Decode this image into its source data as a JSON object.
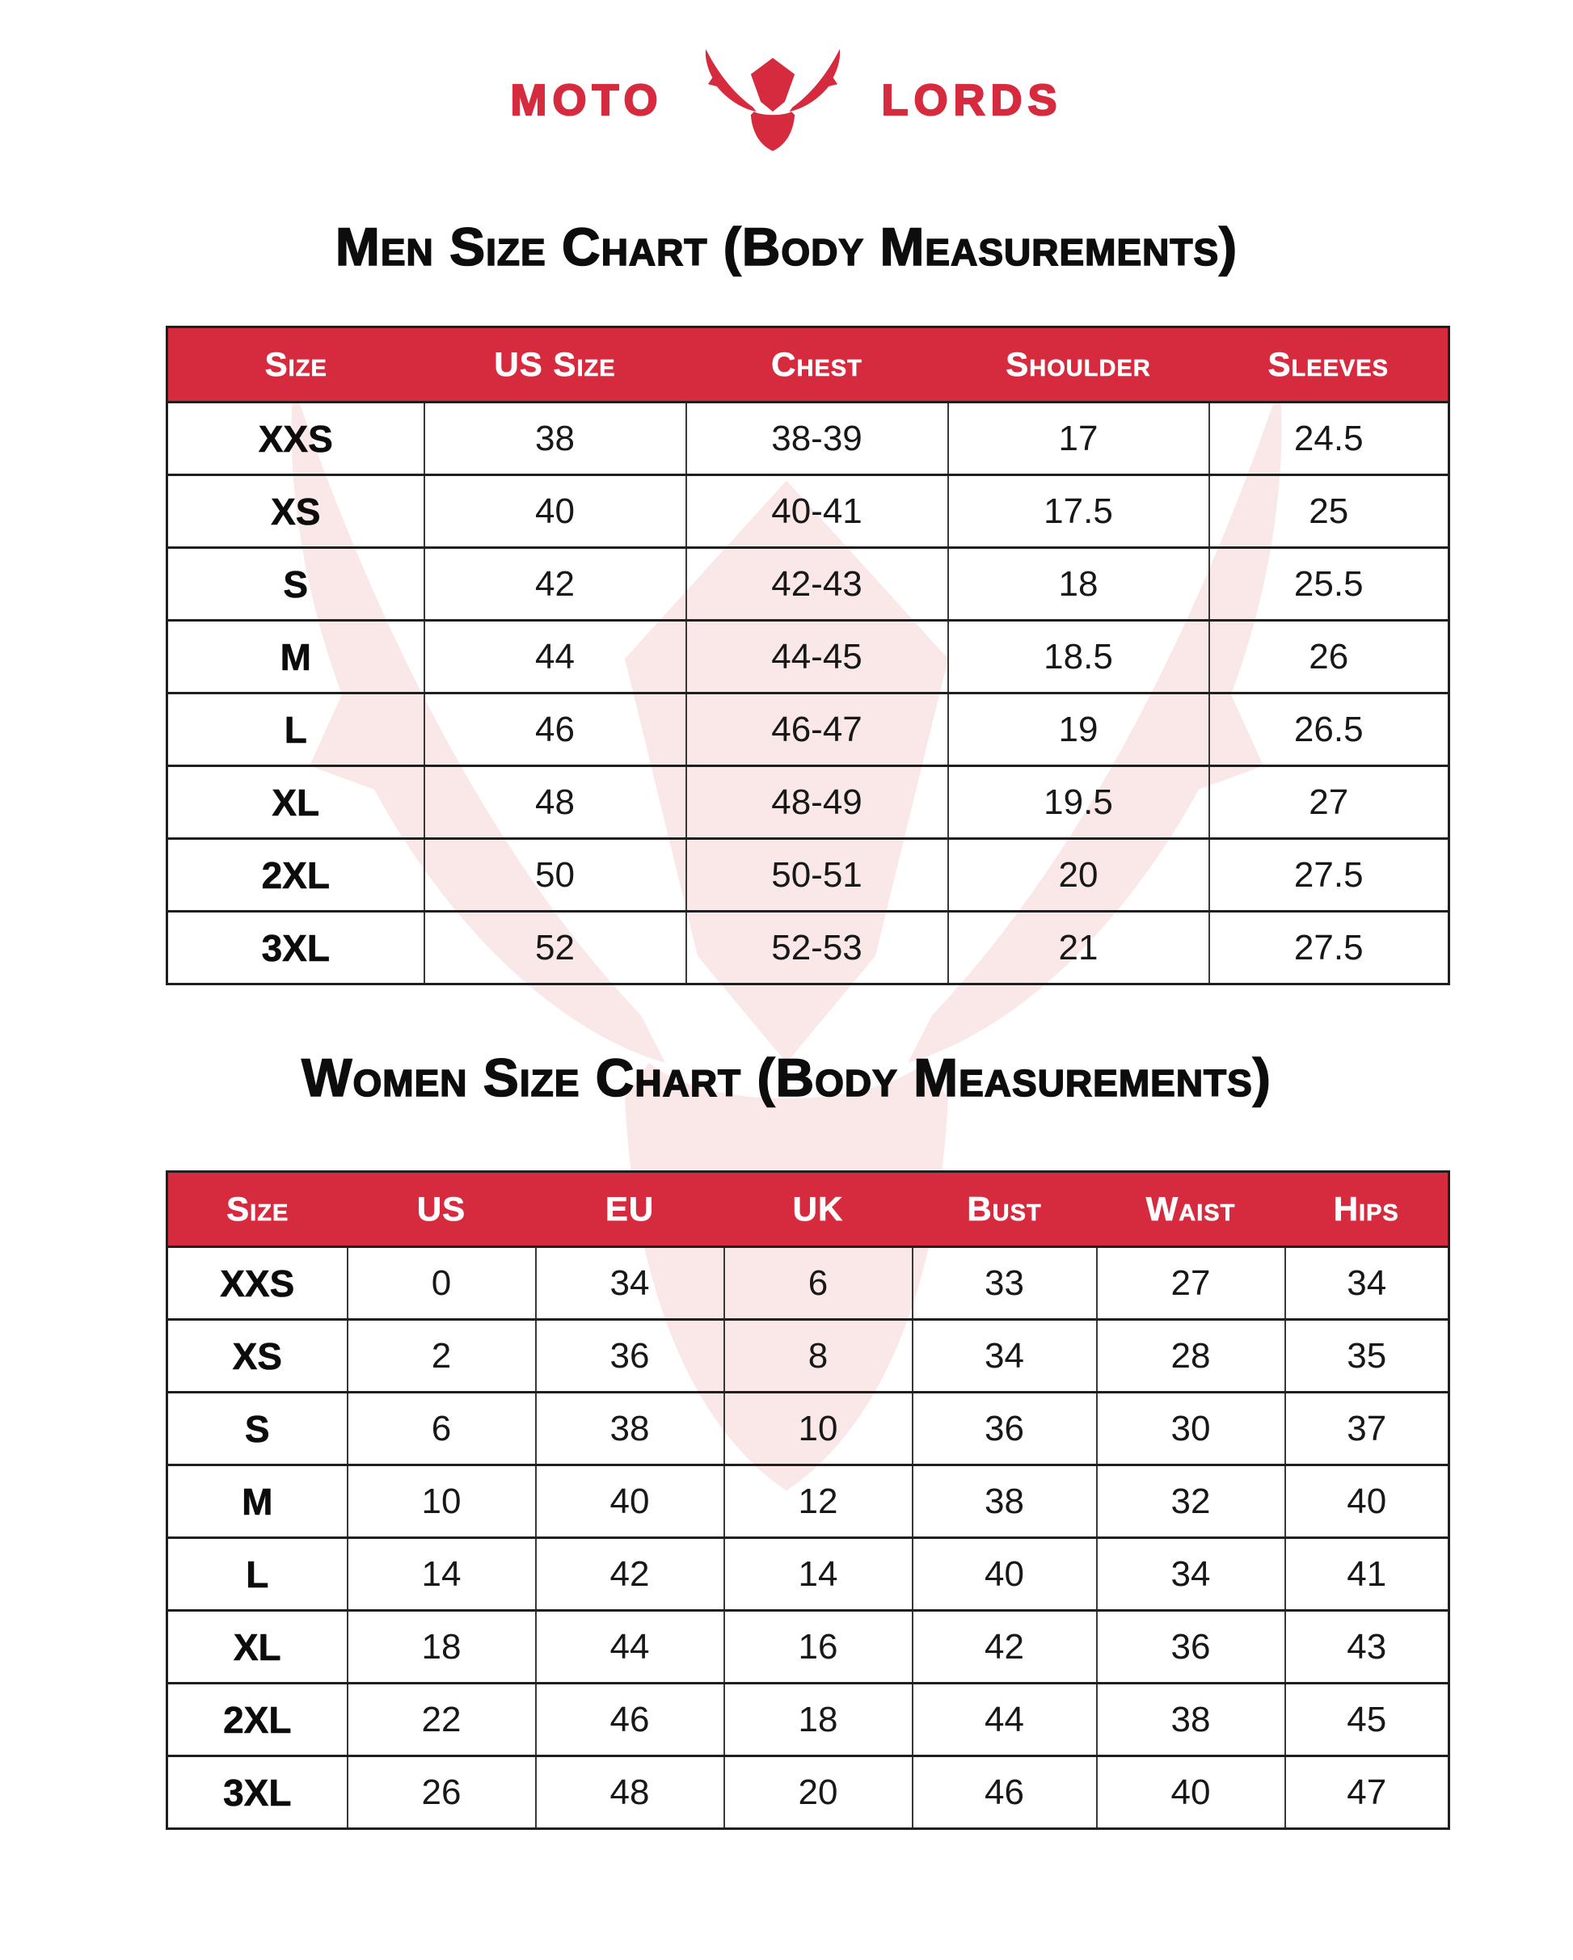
{
  "brand": {
    "left": "MOTO",
    "right": "LORDS",
    "icon": "bull-head-icon",
    "red": "#D62B3E",
    "watermark_pink": "#FAE8E9"
  },
  "men": {
    "title": "Men Size Chart (Body Measurements)",
    "columns": [
      "Size",
      "US Size",
      "Chest",
      "Shoulder",
      "Sleeves"
    ],
    "rows": [
      [
        "XXS",
        "38",
        "38-39",
        "17",
        "24.5"
      ],
      [
        "XS",
        "40",
        "40-41",
        "17.5",
        "25"
      ],
      [
        "S",
        "42",
        "42-43",
        "18",
        "25.5"
      ],
      [
        "M",
        "44",
        "44-45",
        "18.5",
        "26"
      ],
      [
        "L",
        "46",
        "46-47",
        "19",
        "26.5"
      ],
      [
        "XL",
        "48",
        "48-49",
        "19.5",
        "27"
      ],
      [
        "2XL",
        "50",
        "50-51",
        "20",
        "27.5"
      ],
      [
        "3XL",
        "52",
        "52-53",
        "21",
        "27.5"
      ]
    ]
  },
  "women": {
    "title": "Women Size Chart (Body Measurements)",
    "columns": [
      "Size",
      "US",
      "EU",
      "UK",
      "Bust",
      "Waist",
      "Hips"
    ],
    "rows": [
      [
        "XXS",
        "0",
        "34",
        "6",
        "33",
        "27",
        "34"
      ],
      [
        "XS",
        "2",
        "36",
        "8",
        "34",
        "28",
        "35"
      ],
      [
        "S",
        "6",
        "38",
        "10",
        "36",
        "30",
        "37"
      ],
      [
        "M",
        "10",
        "40",
        "12",
        "38",
        "32",
        "40"
      ],
      [
        "L",
        "14",
        "42",
        "14",
        "40",
        "34",
        "41"
      ],
      [
        "XL",
        "18",
        "44",
        "16",
        "42",
        "36",
        "43"
      ],
      [
        "2XL",
        "22",
        "46",
        "18",
        "44",
        "38",
        "45"
      ],
      [
        "3XL",
        "26",
        "48",
        "20",
        "46",
        "40",
        "47"
      ]
    ]
  }
}
